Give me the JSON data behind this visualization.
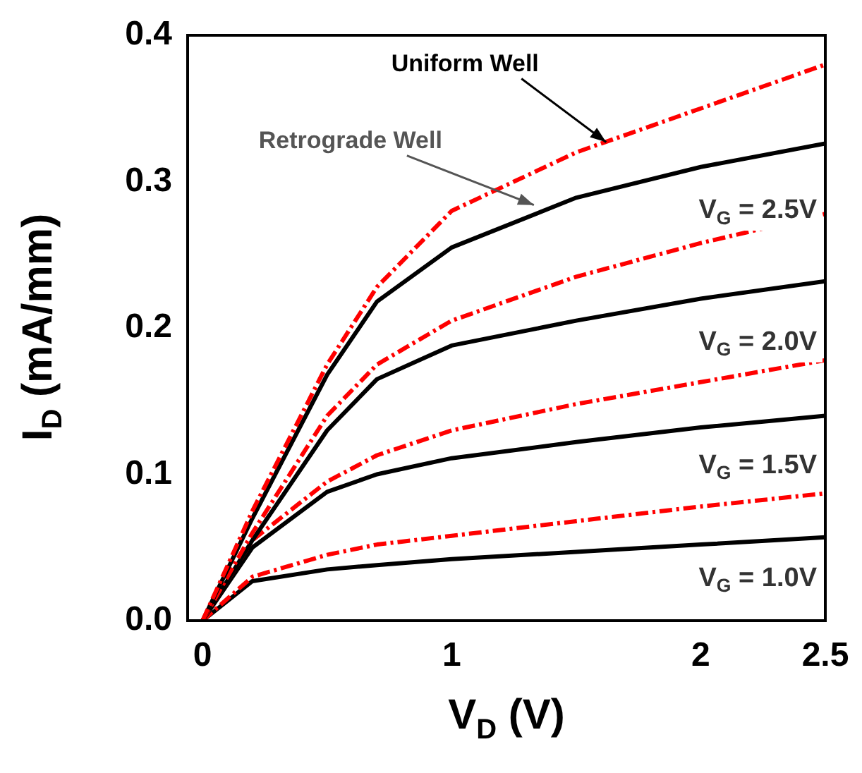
{
  "chart_data": {
    "type": "line",
    "xlabel": "V$_{D}$ (V)",
    "ylabel": "I$_{D}$ (mA/mm)",
    "x": [
      0,
      0.2,
      0.5,
      0.7,
      1,
      1.5,
      2,
      2.5
    ],
    "series": [
      {
        "color": "#ff0000",
        "line_style": "dashed",
        "values": [
          0,
          0.075,
          0.175,
          0.228,
          0.28,
          0.32,
          0.35,
          0.38
        ]
      },
      {
        "color": "#000000",
        "line_style": "solid",
        "values": [
          0,
          0.07,
          0.168,
          0.218,
          0.255,
          0.289,
          0.31,
          0.326
        ]
      },
      {
        "color": "#ff0000",
        "line_style": "dashed",
        "values": [
          0,
          0.06,
          0.14,
          0.175,
          0.205,
          0.235,
          0.258,
          0.278
        ]
      },
      {
        "color": "#000000",
        "line_style": "solid",
        "values": [
          0,
          0.055,
          0.13,
          0.165,
          0.188,
          0.205,
          0.22,
          0.232
        ]
      },
      {
        "color": "#ff0000",
        "line_style": "dashed",
        "values": [
          0,
          0.055,
          0.095,
          0.113,
          0.13,
          0.148,
          0.163,
          0.178
        ]
      },
      {
        "color": "#000000",
        "line_style": "solid",
        "values": [
          0,
          0.05,
          0.088,
          0.1,
          0.111,
          0.122,
          0.132,
          0.14
        ]
      },
      {
        "color": "#ff0000",
        "line_style": "dashed",
        "values": [
          0,
          0.03,
          0.045,
          0.052,
          0.058,
          0.068,
          0.078,
          0.087
        ]
      },
      {
        "color": "#000000",
        "line_style": "solid",
        "values": [
          0,
          0.027,
          0.035,
          0.038,
          0.042,
          0.047,
          0.052,
          0.057
        ]
      }
    ],
    "xlim": [
      -0.06,
      2.5
    ],
    "xticks": [
      0,
      1,
      2,
      2.5
    ],
    "ylim": [
      0,
      0.4
    ],
    "yticks": [
      {
        "value": 0,
        "label": "0.0"
      },
      0.1,
      0.2,
      0.3,
      0.4
    ],
    "marker": "none",
    "grid": false,
    "legend": false,
    "annotations": [
      {
        "text": "Uniform Well",
        "x": 1.62,
        "y": 0.327
      },
      {
        "text": "Retrograde Well",
        "x": 1.33,
        "y": 0.284
      },
      "V$_{G}$ = 2.5V",
      "V$_{G}$ = 2.0V",
      "V$_{G}$ = 1.5V",
      "V$_{G}$ = 1.0V"
    ]
  }
}
